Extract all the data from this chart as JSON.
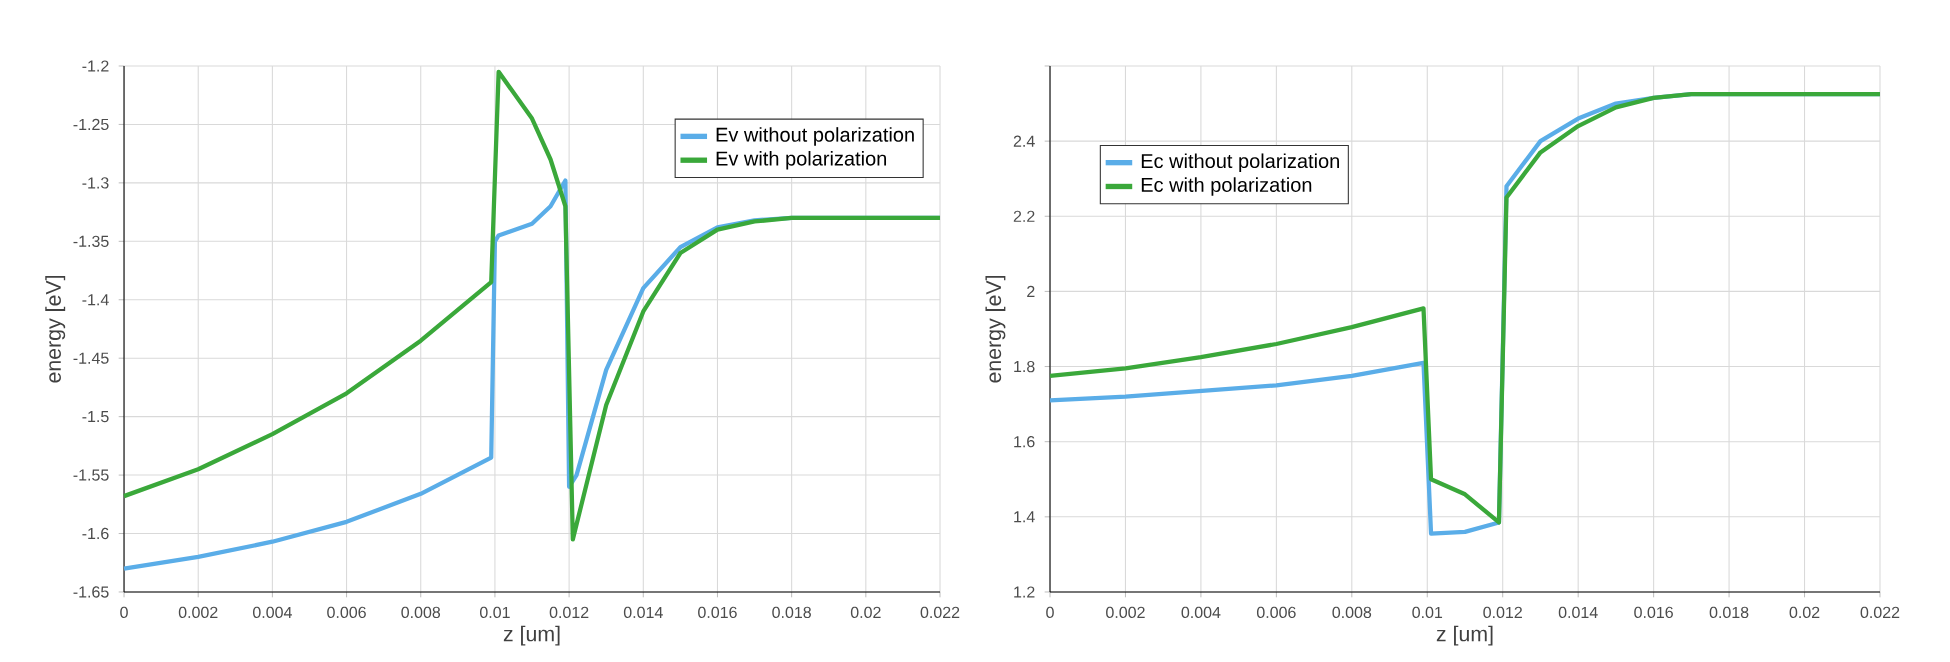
{
  "chart_data": [
    {
      "type": "line",
      "xlabel": "z [um]",
      "ylabel": "energy [eV]",
      "xlim": [
        0,
        0.022
      ],
      "ylim": [
        -1.65,
        -1.2
      ],
      "xticks": [
        0,
        0.002,
        0.004,
        0.006,
        0.008,
        0.01,
        0.012,
        0.014,
        0.016,
        0.018,
        0.02,
        0.022
      ],
      "yticks": [
        -1.65,
        -1.6,
        -1.55,
        -1.5,
        -1.45,
        -1.4,
        -1.35,
        -1.3,
        -1.25,
        -1.2
      ],
      "grid": true,
      "legend": "top right",
      "series": [
        {
          "name": "Ev without polarization",
          "color": "#5aade8",
          "x": [
            0,
            0.002,
            0.004,
            0.006,
            0.008,
            0.0099,
            0.01,
            0.0101,
            0.011,
            0.0115,
            0.0119,
            0.012,
            0.0122,
            0.013,
            0.014,
            0.015,
            0.016,
            0.017,
            0.018,
            0.022
          ],
          "values": [
            -1.63,
            -1.62,
            -1.607,
            -1.59,
            -1.566,
            -1.535,
            -1.35,
            -1.345,
            -1.335,
            -1.32,
            -1.298,
            -1.56,
            -1.55,
            -1.46,
            -1.39,
            -1.355,
            -1.338,
            -1.332,
            -1.33,
            -1.33
          ]
        },
        {
          "name": "Ev with polarization",
          "color": "#3aa83a",
          "x": [
            0,
            0.002,
            0.004,
            0.006,
            0.008,
            0.0099,
            0.0101,
            0.011,
            0.0115,
            0.0119,
            0.0121,
            0.013,
            0.014,
            0.015,
            0.016,
            0.017,
            0.018,
            0.022
          ],
          "values": [
            -1.568,
            -1.545,
            -1.515,
            -1.48,
            -1.435,
            -1.385,
            -1.205,
            -1.245,
            -1.28,
            -1.32,
            -1.605,
            -1.49,
            -1.41,
            -1.36,
            -1.34,
            -1.333,
            -1.33,
            -1.33
          ]
        }
      ]
    },
    {
      "type": "line",
      "xlabel": "z [um]",
      "ylabel": "energy [eV]",
      "xlim": [
        0,
        0.022
      ],
      "ylim": [
        1.2,
        2.6
      ],
      "xticks": [
        0,
        0.002,
        0.004,
        0.006,
        0.008,
        0.01,
        0.012,
        0.014,
        0.016,
        0.018,
        0.02,
        0.022
      ],
      "yticks": [
        1.2,
        1.4,
        1.6,
        1.8,
        2,
        2.2,
        2.4,
        {
          "value": 2.6,
          "label": null
        }
      ],
      "grid": true,
      "legend": "top left",
      "series": [
        {
          "name": "Ec without polarization",
          "color": "#5aade8",
          "x": [
            0,
            0.002,
            0.004,
            0.006,
            0.008,
            0.0099,
            0.0101,
            0.011,
            0.0119,
            0.0121,
            0.013,
            0.014,
            0.015,
            0.016,
            0.017,
            0.022
          ],
          "values": [
            1.71,
            1.72,
            1.735,
            1.75,
            1.775,
            1.81,
            1.355,
            1.36,
            1.385,
            2.28,
            2.4,
            2.46,
            2.5,
            2.515,
            2.525,
            2.525
          ]
        },
        {
          "name": "Ec with polarization",
          "color": "#3aa83a",
          "x": [
            0,
            0.002,
            0.004,
            0.006,
            0.008,
            0.0099,
            0.0101,
            0.011,
            0.0119,
            0.0121,
            0.013,
            0.014,
            0.015,
            0.016,
            0.017,
            0.022
          ],
          "values": [
            1.775,
            1.795,
            1.825,
            1.86,
            1.905,
            1.955,
            1.5,
            1.46,
            1.385,
            2.25,
            2.37,
            2.44,
            2.49,
            2.515,
            2.525,
            2.525
          ]
        }
      ]
    }
  ]
}
